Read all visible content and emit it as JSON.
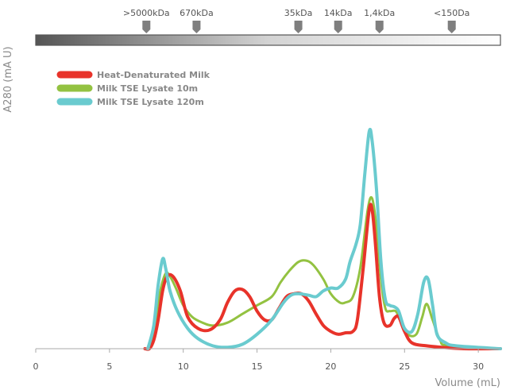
{
  "chart_data": {
    "type": "line",
    "xlabel": "Volume (mL)",
    "ylabel": "A280 (mA U)",
    "xlim": [
      0,
      31.5
    ],
    "ylim": [
      0,
      100
    ],
    "x_ticks": [
      "0",
      "5",
      "10",
      "15",
      "20",
      "25",
      "30"
    ],
    "grid": false,
    "legend_position": "top-left",
    "mw_markers": [
      {
        "label": ">5000kDa",
        "x": 7.5
      },
      {
        "label": "670kDa",
        "x": 10.9
      },
      {
        "label": "35kDa",
        "x": 17.8
      },
      {
        "label": "14kDa",
        "x": 20.5
      },
      {
        "label": "1,4kDa",
        "x": 23.3
      },
      {
        "label": "<150Da",
        "x": 28.2
      }
    ],
    "series": [
      {
        "name": "Heat-Denaturated Milk",
        "color": "#e8332a",
        "points": [
          [
            7.4,
            0
          ],
          [
            7.7,
            0
          ],
          [
            8.0,
            3
          ],
          [
            8.3,
            10
          ],
          [
            8.6,
            20
          ],
          [
            8.9,
            25
          ],
          [
            9.3,
            25
          ],
          [
            9.8,
            20
          ],
          [
            10.3,
            11
          ],
          [
            11,
            7
          ],
          [
            11.8,
            6.5
          ],
          [
            12.5,
            10
          ],
          [
            13,
            16
          ],
          [
            13.5,
            20
          ],
          [
            14,
            20.5
          ],
          [
            14.5,
            18
          ],
          [
            15,
            13
          ],
          [
            15.5,
            10
          ],
          [
            16,
            10
          ],
          [
            16.5,
            14
          ],
          [
            17,
            18
          ],
          [
            17.5,
            19
          ],
          [
            18,
            19
          ],
          [
            18.5,
            16.5
          ],
          [
            19,
            12
          ],
          [
            19.5,
            8
          ],
          [
            20,
            6
          ],
          [
            20.5,
            5
          ],
          [
            21,
            5.5
          ],
          [
            21.5,
            6
          ],
          [
            21.8,
            10
          ],
          [
            22.2,
            28
          ],
          [
            22.6,
            48
          ],
          [
            22.8,
            48
          ],
          [
            23,
            38
          ],
          [
            23.3,
            18
          ],
          [
            23.6,
            9
          ],
          [
            24,
            8
          ],
          [
            24.3,
            10.5
          ],
          [
            24.6,
            11
          ],
          [
            25,
            6
          ],
          [
            25.5,
            2
          ],
          [
            26.5,
            1
          ],
          [
            27.5,
            0.5
          ],
          [
            29,
            0
          ],
          [
            31.5,
            0
          ]
        ]
      },
      {
        "name": "Milk TSE Lysate  10m",
        "color": "#93c241",
        "points": [
          [
            7.6,
            0
          ],
          [
            8.0,
            6
          ],
          [
            8.4,
            19
          ],
          [
            8.8,
            26
          ],
          [
            9.1,
            25
          ],
          [
            9.5,
            21
          ],
          [
            10,
            15
          ],
          [
            10.6,
            11
          ],
          [
            11.3,
            9
          ],
          [
            12,
            8
          ],
          [
            13,
            9
          ],
          [
            14,
            12
          ],
          [
            15,
            15
          ],
          [
            16,
            18
          ],
          [
            16.6,
            23
          ],
          [
            17.2,
            27
          ],
          [
            17.8,
            30
          ],
          [
            18.3,
            30.5
          ],
          [
            18.8,
            29
          ],
          [
            19.5,
            24
          ],
          [
            20,
            19
          ],
          [
            20.6,
            16
          ],
          [
            21,
            16
          ],
          [
            21.5,
            18
          ],
          [
            22,
            28
          ],
          [
            22.5,
            48
          ],
          [
            22.8,
            52
          ],
          [
            23.1,
            42
          ],
          [
            23.4,
            24
          ],
          [
            23.7,
            14
          ],
          [
            24,
            13
          ],
          [
            24.4,
            13
          ],
          [
            24.7,
            10
          ],
          [
            25.2,
            5
          ],
          [
            25.8,
            5
          ],
          [
            26.2,
            11
          ],
          [
            26.5,
            15.5
          ],
          [
            26.9,
            10
          ],
          [
            27.4,
            3
          ],
          [
            28,
            1
          ],
          [
            31.5,
            0
          ]
        ]
      },
      {
        "name": "Milk TSE Lysate  120m",
        "color": "#6acbcf",
        "points": [
          [
            7.6,
            0
          ],
          [
            8.0,
            8
          ],
          [
            8.3,
            22
          ],
          [
            8.6,
            31
          ],
          [
            8.8,
            28
          ],
          [
            9.1,
            20
          ],
          [
            9.6,
            13
          ],
          [
            10.3,
            7
          ],
          [
            11,
            3.5
          ],
          [
            12,
            1
          ],
          [
            13,
            0.5
          ],
          [
            14,
            1.5
          ],
          [
            15,
            5
          ],
          [
            16,
            10
          ],
          [
            16.8,
            16
          ],
          [
            17.3,
            18.5
          ],
          [
            17.8,
            19
          ],
          [
            18.5,
            18.5
          ],
          [
            19,
            18
          ],
          [
            19.5,
            20
          ],
          [
            20,
            21
          ],
          [
            20.5,
            21
          ],
          [
            21,
            24
          ],
          [
            21.3,
            30
          ],
          [
            21.7,
            36
          ],
          [
            22,
            43
          ],
          [
            22.3,
            60
          ],
          [
            22.6,
            75
          ],
          [
            22.8,
            72
          ],
          [
            23.1,
            55
          ],
          [
            23.4,
            30
          ],
          [
            23.7,
            17
          ],
          [
            24,
            15
          ],
          [
            24.3,
            14.5
          ],
          [
            24.6,
            13
          ],
          [
            25,
            7
          ],
          [
            25.5,
            6
          ],
          [
            25.9,
            12
          ],
          [
            26.3,
            23
          ],
          [
            26.6,
            24
          ],
          [
            26.9,
            15
          ],
          [
            27.2,
            5
          ],
          [
            27.8,
            2
          ],
          [
            28.5,
            1
          ],
          [
            31.5,
            0
          ]
        ]
      }
    ]
  }
}
